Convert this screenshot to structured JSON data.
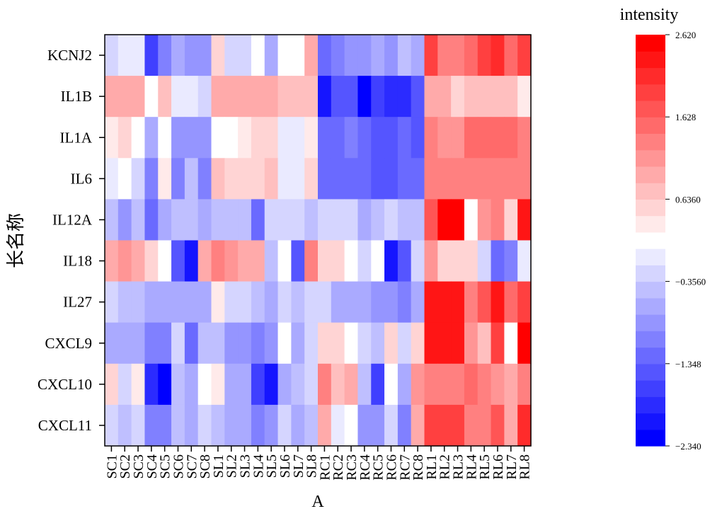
{
  "chart_data": {
    "type": "heatmap",
    "title": "",
    "xlabel": "A",
    "ylabel": "长名称",
    "columns": [
      "SC1",
      "SC2",
      "SC3",
      "SC4",
      "SC5",
      "SC6",
      "SC7",
      "SC8",
      "SL1",
      "SL2",
      "SL3",
      "SL4",
      "SL5",
      "SL6",
      "SL7",
      "SL8",
      "RC1",
      "RC2",
      "RC3",
      "RC4",
      "RC5",
      "RC6",
      "RC7",
      "RC8",
      "RL1",
      "RL2",
      "RL3",
      "RL4",
      "RL5",
      "RL6",
      "RL7",
      "RL8"
    ],
    "rows": [
      "KCNJ2",
      "IL1B",
      "IL1A",
      "IL6",
      "IL12A",
      "IL18",
      "IL27",
      "CXCL9",
      "CXCL10",
      "CXCL11"
    ],
    "values": [
      [
        -0.3,
        -0.1,
        0.0,
        -1.6,
        -1.0,
        -0.7,
        -0.9,
        -0.9,
        0.6,
        -0.2,
        -0.3,
        0.1,
        -0.6,
        0.2,
        0.1,
        1.0,
        -1.2,
        -1.1,
        -0.9,
        -0.9,
        -0.6,
        -0.8,
        -0.5,
        -0.7,
        2.0,
        1.3,
        1.3,
        1.5,
        2.0,
        2.1,
        1.6,
        2.0
      ],
      [
        0.9,
        0.9,
        0.9,
        0.1,
        0.8,
        -0.1,
        0.0,
        -0.2,
        0.9,
        0.9,
        0.9,
        0.9,
        0.9,
        0.7,
        0.7,
        0.7,
        -2.0,
        -1.5,
        -1.5,
        -2.2,
        -1.7,
        -1.8,
        -1.8,
        -1.5,
        0.9,
        0.9,
        0.6,
        0.8,
        0.8,
        0.8,
        0.8,
        0.4
      ],
      [
        0.3,
        0.6,
        0.2,
        -0.6,
        0.2,
        -0.8,
        -0.8,
        -0.9,
        0.2,
        0.1,
        0.4,
        0.5,
        0.6,
        0.0,
        -0.1,
        0.4,
        -1.3,
        -1.3,
        -1.1,
        -1.3,
        -1.4,
        -1.4,
        -1.2,
        -1.5,
        1.3,
        1.1,
        1.1,
        1.5,
        1.5,
        1.5,
        1.6,
        1.4
      ],
      [
        -0.1,
        0.2,
        -0.3,
        -1.0,
        0.4,
        -1.1,
        -0.4,
        -1.1,
        0.7,
        0.6,
        0.6,
        0.6,
        0.7,
        -0.1,
        0.0,
        0.6,
        -1.3,
        -1.3,
        -1.3,
        -1.3,
        -1.4,
        -1.4,
        -1.3,
        -1.3,
        1.3,
        1.3,
        1.3,
        1.3,
        1.4,
        1.4,
        1.3,
        1.3
      ],
      [
        -0.4,
        -0.8,
        -0.4,
        -1.2,
        -0.6,
        -0.4,
        -0.5,
        -0.7,
        -0.5,
        -0.5,
        -0.4,
        -1.2,
        -0.2,
        -0.2,
        -0.3,
        -0.5,
        -0.2,
        -0.3,
        -0.3,
        -0.7,
        -0.5,
        -0.3,
        -0.4,
        -0.4,
        1.8,
        2.6,
        2.6,
        0.1,
        1.1,
        1.4,
        0.6,
        2.3
      ],
      [
        1.0,
        1.1,
        1.0,
        0.5,
        0.2,
        -1.5,
        -2.1,
        0.9,
        1.3,
        1.2,
        1.0,
        0.9,
        -0.4,
        0.1,
        -1.5,
        1.3,
        0.6,
        0.6,
        0.1,
        -0.3,
        0.2,
        -2.0,
        -1.4,
        -0.3,
        1.2,
        0.5,
        0.5,
        0.6,
        -0.2,
        -1.3,
        -1.0,
        -0.1
      ],
      [
        -0.3,
        -0.5,
        -0.4,
        -0.6,
        -0.6,
        -0.7,
        -0.7,
        -0.6,
        0.4,
        -0.2,
        -0.2,
        -0.5,
        -0.7,
        -0.3,
        -0.4,
        -0.2,
        -0.2,
        -0.7,
        -0.7,
        -0.7,
        -0.9,
        -0.8,
        -1.0,
        -0.7,
        2.3,
        2.3,
        2.3,
        1.3,
        1.7,
        2.3,
        1.6,
        2.0
      ],
      [
        -0.6,
        -0.7,
        -0.7,
        -1.0,
        -1.0,
        -0.3,
        -1.2,
        -0.5,
        -0.4,
        -0.9,
        -0.9,
        -1.1,
        -0.9,
        0.1,
        -0.6,
        -0.2,
        0.5,
        0.5,
        0.2,
        -0.2,
        -0.5,
        0.6,
        -0.3,
        0.5,
        2.3,
        2.3,
        2.3,
        1.1,
        0.7,
        2.0,
        0.1,
        2.6
      ],
      [
        0.5,
        -0.2,
        0.4,
        -1.9,
        -2.2,
        -0.5,
        -0.6,
        0.2,
        0.4,
        -0.6,
        -0.6,
        -1.6,
        -2.0,
        -0.6,
        -0.5,
        -0.2,
        1.3,
        0.8,
        0.9,
        -0.4,
        -1.7,
        0.1,
        -0.7,
        1.1,
        1.4,
        1.4,
        1.4,
        1.5,
        1.3,
        1.2,
        1.0,
        1.3
      ],
      [
        -0.3,
        -0.4,
        -0.3,
        -1.0,
        -1.0,
        -0.5,
        -0.7,
        -0.3,
        -0.4,
        -0.6,
        -0.6,
        -1.0,
        -0.9,
        -0.2,
        -0.6,
        -0.4,
        1.0,
        -0.1,
        0.2,
        -0.9,
        -0.8,
        -0.3,
        -1.0,
        0.9,
        2.0,
        2.0,
        2.0,
        1.3,
        1.3,
        1.8,
        0.9,
        2.2
      ]
    ],
    "colorbar": {
      "title": "intensity",
      "min": -2.34,
      "max": 2.62,
      "steps": 25,
      "colors": [
        "#0000ff",
        "#ffffff",
        "#ff0000"
      ],
      "tick_values": [
        2.62,
        1.628,
        0.636,
        -0.356,
        -1.348,
        -2.34
      ],
      "tick_labels": [
        "2.620",
        "1.628",
        "0.6360",
        "−0.3560",
        "−1.348",
        "−2.340"
      ]
    },
    "grid": false
  }
}
